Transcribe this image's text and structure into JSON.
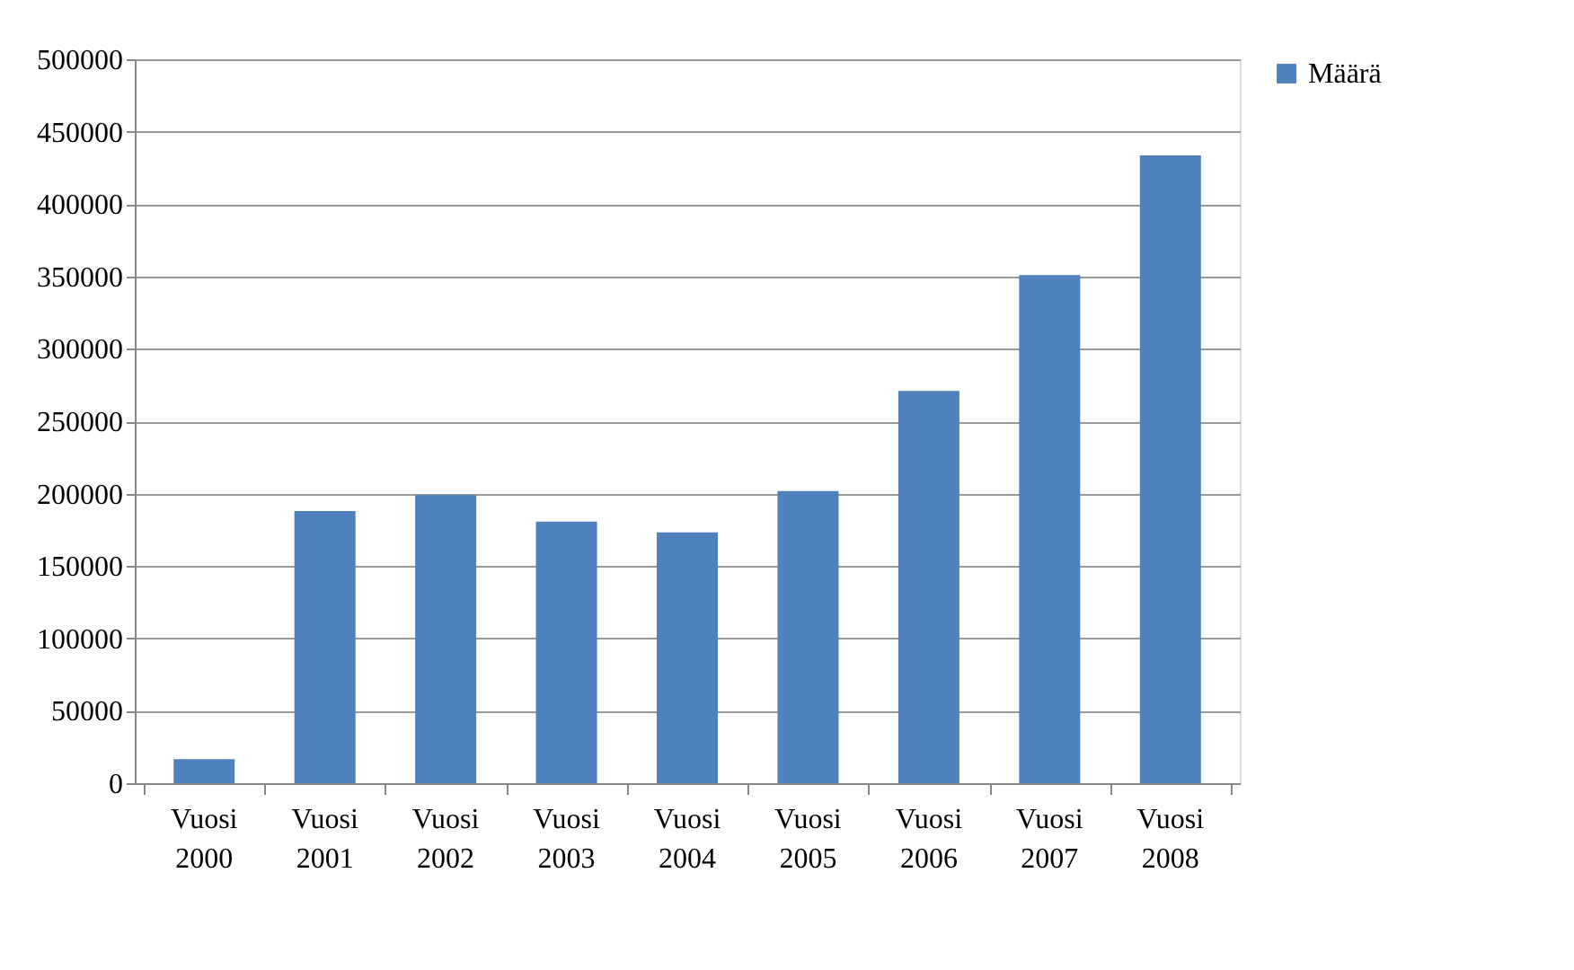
{
  "chart_data": {
    "type": "bar",
    "categories": [
      "Vuosi 2000",
      "Vuosi 2001",
      "Vuosi 2002",
      "Vuosi 2003",
      "Vuosi 2004",
      "Vuosi 2005",
      "Vuosi 2006",
      "Vuosi 2007",
      "Vuosi 2008"
    ],
    "series": [
      {
        "name": "Määrä",
        "color": "#4f81bd",
        "values": [
          16600,
          188000,
          199000,
          180700,
          173300,
          201700,
          271000,
          351000,
          433600
        ]
      }
    ],
    "ylim": [
      0,
      500000
    ],
    "yticks": [
      0,
      50000,
      100000,
      150000,
      200000,
      250000,
      300000,
      350000,
      400000,
      450000,
      500000
    ],
    "grid": "y",
    "legend": "right"
  }
}
